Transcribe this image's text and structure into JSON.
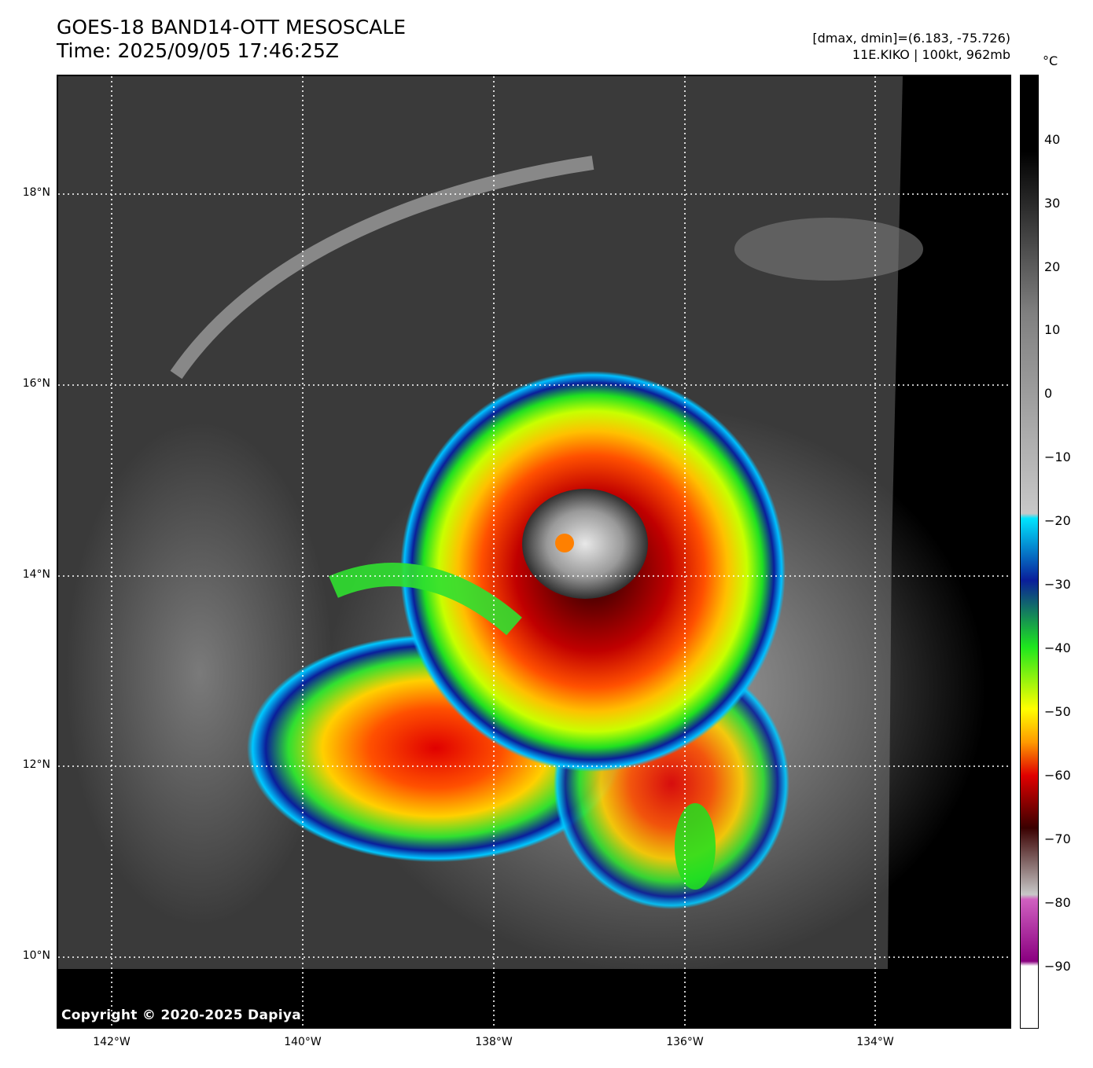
{
  "title": {
    "line1": "GOES-18 BAND14-OTT MESOSCALE",
    "line2": "Time: 2025/09/05 17:46:25Z"
  },
  "meta": {
    "range": "[dmax, dmin]=(6.183, -75.726)",
    "storm": "11E.KIKO | 100kt, 962mb"
  },
  "copyright": "Copyright © 2020-2025 Dapiya",
  "map": {
    "lat_labels": [
      "18°N",
      "16°N",
      "14°N",
      "12°N",
      "10°N"
    ],
    "lon_labels": [
      "142°W",
      "140°W",
      "138°W",
      "136°W",
      "134°W"
    ]
  },
  "colorbar": {
    "unit": "°C",
    "ticks": [
      "40",
      "30",
      "20",
      "10",
      "0",
      "−10",
      "−20",
      "−30",
      "−40",
      "−50",
      "−60",
      "−70",
      "−80",
      "−90"
    ],
    "colors": {
      "warm_black": "#000000",
      "gray": "#808080",
      "light_gray": "#c8c8c8",
      "cyan": "#00e5ff",
      "blue": "#0a1e9a",
      "green": "#1ee61e",
      "yellow": "#ffff00",
      "orange": "#ff9a00",
      "red": "#e00000",
      "dark_red": "#3a0000",
      "magenta": "#d060c0",
      "purple": "#8a0080",
      "white": "#ffffff"
    }
  }
}
